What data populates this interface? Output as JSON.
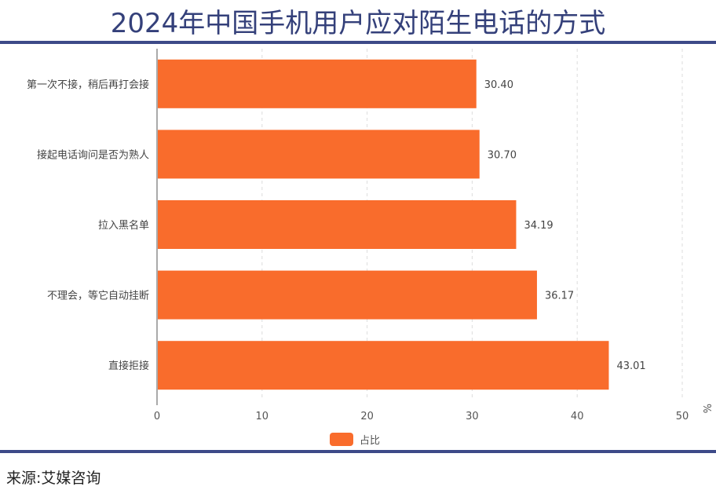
{
  "title": "2024年中国手机用户应对陌生电话的方式",
  "source": "来源:艾媒咨询",
  "chart_data": {
    "type": "bar",
    "orientation": "horizontal",
    "title": "2024年中国手机用户应对陌生电话的方式",
    "categories": [
      "第一次不接，稍后再打会接",
      "接起电话询问是否为熟人",
      "拉入黑名单",
      "不理会，等它自动挂断",
      "直接拒接"
    ],
    "series": [
      {
        "name": "占比",
        "values": [
          30.4,
          30.7,
          34.19,
          36.17,
          43.01
        ],
        "color": "#f96c2c"
      }
    ],
    "data_labels": [
      "30.40",
      "30.70",
      "34.19",
      "36.17",
      "43.01"
    ],
    "xlim": [
      0,
      50
    ],
    "xticks": [
      "0",
      "10",
      "20",
      "30",
      "40",
      "50"
    ],
    "xunit": "%",
    "grid": "vertical dashed",
    "legend": "bottom"
  }
}
